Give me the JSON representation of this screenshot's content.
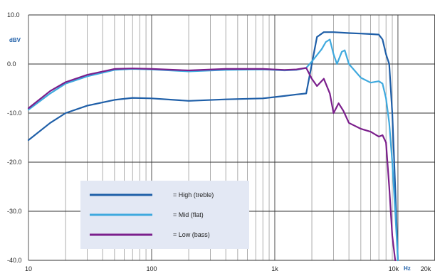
{
  "chart_data": {
    "type": "line",
    "ylabel": "dBV",
    "xunit": "Hz",
    "x_scale": "log",
    "xlim": [
      10,
      20000
    ],
    "ylim": [
      -40,
      10
    ],
    "grid": true,
    "y_ticks": [
      {
        "value": 10,
        "label": "10.0"
      },
      {
        "value": 0,
        "label": "0.0"
      },
      {
        "value": -10,
        "label": "-10.0"
      },
      {
        "value": -20,
        "label": "-20.0"
      },
      {
        "value": -30,
        "label": "-30.0"
      },
      {
        "value": -40,
        "label": "-40.0"
      }
    ],
    "x_ticks": [
      {
        "value": 10,
        "label": "10"
      },
      {
        "value": 100,
        "label": "100"
      },
      {
        "value": 1000,
        "label": "1k"
      },
      {
        "value": 10000,
        "label": "10k"
      },
      {
        "value": 20000,
        "label": "20k"
      }
    ],
    "legend_position": "bottom-left",
    "series": [
      {
        "name": "= High (treble)",
        "color": "#1f5fa8",
        "points": [
          [
            10,
            -15.5
          ],
          [
            15,
            -12
          ],
          [
            20,
            -10
          ],
          [
            30,
            -8.5
          ],
          [
            50,
            -7.3
          ],
          [
            70,
            -6.9
          ],
          [
            100,
            -7
          ],
          [
            200,
            -7.5
          ],
          [
            400,
            -7.2
          ],
          [
            800,
            -7
          ],
          [
            1200,
            -6.5
          ],
          [
            1500,
            -6.2
          ],
          [
            1800,
            -6
          ],
          [
            2000,
            0
          ],
          [
            2200,
            5.5
          ],
          [
            2500,
            6.5
          ],
          [
            3000,
            6.5
          ],
          [
            4000,
            6.3
          ],
          [
            5000,
            6.2
          ],
          [
            6000,
            6.1
          ],
          [
            7000,
            6
          ],
          [
            7500,
            5
          ],
          [
            8000,
            2
          ],
          [
            8500,
            0
          ],
          [
            9000,
            -10
          ],
          [
            9500,
            -25
          ],
          [
            10000,
            -40
          ]
        ]
      },
      {
        "name": "= Mid (flat)",
        "color": "#3fa9de",
        "points": [
          [
            10,
            -9.3
          ],
          [
            15,
            -6
          ],
          [
            20,
            -4
          ],
          [
            30,
            -2.5
          ],
          [
            50,
            -1.2
          ],
          [
            70,
            -1
          ],
          [
            100,
            -1.1
          ],
          [
            200,
            -1.5
          ],
          [
            400,
            -1.2
          ],
          [
            800,
            -1.1
          ],
          [
            1200,
            -1.3
          ],
          [
            1500,
            -1.2
          ],
          [
            1800,
            -0.8
          ],
          [
            2000,
            0.5
          ],
          [
            2400,
            3
          ],
          [
            2600,
            4.5
          ],
          [
            2800,
            5
          ],
          [
            3000,
            2
          ],
          [
            3200,
            0
          ],
          [
            3500,
            2.5
          ],
          [
            3700,
            2.8
          ],
          [
            4000,
            0
          ],
          [
            5000,
            -2.8
          ],
          [
            6000,
            -3.8
          ],
          [
            7000,
            -3.5
          ],
          [
            7500,
            -4
          ],
          [
            8000,
            -7
          ],
          [
            8500,
            -12
          ],
          [
            9000,
            -20
          ],
          [
            9500,
            -30
          ],
          [
            10000,
            -40
          ]
        ]
      },
      {
        "name": "= Low (bass)",
        "color": "#7b1f8c",
        "points": [
          [
            10,
            -9
          ],
          [
            15,
            -5.5
          ],
          [
            20,
            -3.7
          ],
          [
            30,
            -2.2
          ],
          [
            50,
            -1
          ],
          [
            70,
            -0.9
          ],
          [
            100,
            -1
          ],
          [
            200,
            -1.3
          ],
          [
            400,
            -1
          ],
          [
            800,
            -1
          ],
          [
            1200,
            -1.2
          ],
          [
            1500,
            -1.1
          ],
          [
            1800,
            -0.8
          ],
          [
            2000,
            -3
          ],
          [
            2200,
            -4.5
          ],
          [
            2500,
            -3
          ],
          [
            2800,
            -6
          ],
          [
            3000,
            -10
          ],
          [
            3300,
            -8
          ],
          [
            3600,
            -9.5
          ],
          [
            4000,
            -12
          ],
          [
            5000,
            -13.2
          ],
          [
            6000,
            -13.8
          ],
          [
            7000,
            -14.8
          ],
          [
            7500,
            -14.5
          ],
          [
            8000,
            -16
          ],
          [
            8500,
            -25
          ],
          [
            9000,
            -35
          ],
          [
            9500,
            -40
          ]
        ]
      }
    ]
  }
}
